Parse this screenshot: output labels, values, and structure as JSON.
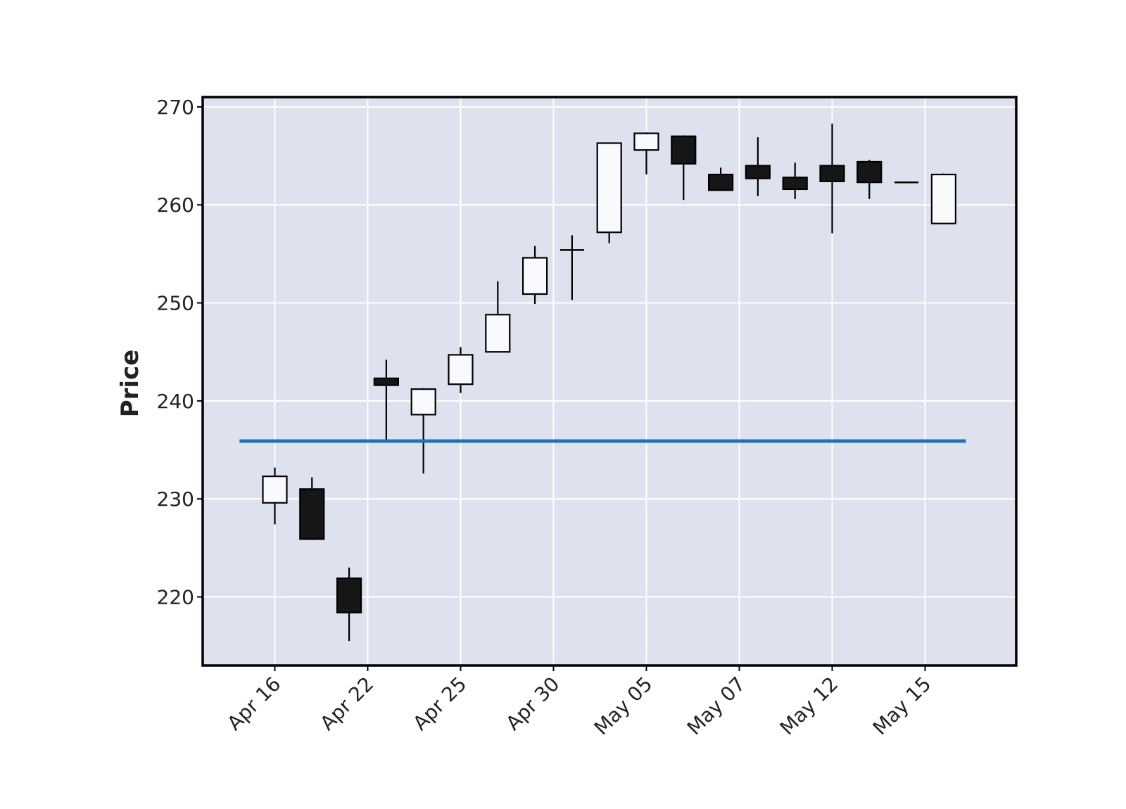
{
  "chart_data": {
    "type": "candlestick",
    "title": "",
    "xlabel": "",
    "ylabel": "Price",
    "ylim": [
      213,
      271
    ],
    "y_ticks": [
      220,
      230,
      240,
      250,
      260,
      270
    ],
    "x_tick_labels": [
      {
        "index": 0,
        "label": "Apr 16"
      },
      {
        "index": 2.5,
        "label": "Apr 22"
      },
      {
        "index": 5,
        "label": "Apr 25"
      },
      {
        "index": 7.5,
        "label": "Apr 30"
      },
      {
        "index": 10,
        "label": "May 05"
      },
      {
        "index": 12.5,
        "label": "May 07"
      },
      {
        "index": 15,
        "label": "May 12"
      },
      {
        "index": 17.5,
        "label": "May 15"
      }
    ],
    "grid": true,
    "candles": [
      {
        "open": 229.6,
        "high": 233.2,
        "low": 227.4,
        "close": 232.3
      },
      {
        "open": 231.0,
        "high": 232.2,
        "low": 225.8,
        "close": 225.9
      },
      {
        "open": 221.9,
        "high": 223.0,
        "low": 215.5,
        "close": 218.4
      },
      {
        "open": 242.3,
        "high": 244.2,
        "low": 236.0,
        "close": 241.6
      },
      {
        "open": 238.6,
        "high": 241.3,
        "low": 232.6,
        "close": 241.2
      },
      {
        "open": 241.7,
        "high": 245.5,
        "low": 240.8,
        "close": 244.7
      },
      {
        "open": 245.0,
        "high": 252.2,
        "low": 245.0,
        "close": 248.8
      },
      {
        "open": 250.9,
        "high": 255.8,
        "low": 249.9,
        "close": 254.6
      },
      {
        "open": 255.3,
        "high": 256.9,
        "low": 250.3,
        "close": 255.4
      },
      {
        "open": 257.2,
        "high": 266.3,
        "low": 256.1,
        "close": 266.3
      },
      {
        "open": 265.6,
        "high": 267.4,
        "low": 263.1,
        "close": 267.3
      },
      {
        "open": 267.0,
        "high": 267.1,
        "low": 260.5,
        "close": 264.2
      },
      {
        "open": 263.1,
        "high": 263.8,
        "low": 261.5,
        "close": 261.5
      },
      {
        "open": 264.0,
        "high": 266.9,
        "low": 260.9,
        "close": 262.7
      },
      {
        "open": 262.8,
        "high": 264.3,
        "low": 260.6,
        "close": 261.6
      },
      {
        "open": 264.0,
        "high": 268.3,
        "low": 257.1,
        "close": 262.4
      },
      {
        "open": 264.4,
        "high": 264.6,
        "low": 260.6,
        "close": 262.3
      },
      {
        "open": 262.3,
        "high": 262.3,
        "low": 262.3,
        "close": 262.3
      },
      {
        "open": 258.1,
        "high": 263.2,
        "low": 258.1,
        "close": 263.1
      }
    ],
    "hline": {
      "value": 235.9,
      "color": "#2272b4"
    },
    "colors": {
      "up_fill": "#f8fafd",
      "down_fill": "#161616",
      "edge": "#000000",
      "axes_bg": "#dde2ee",
      "grid": "#ffffff"
    }
  }
}
